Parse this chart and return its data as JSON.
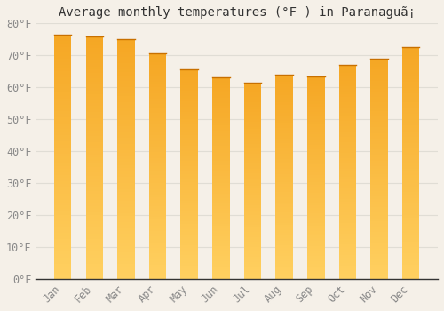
{
  "title": "Average monthly temperatures (°F ) in Paranaguã¡",
  "months": [
    "Jan",
    "Feb",
    "Mar",
    "Apr",
    "May",
    "Jun",
    "Jul",
    "Aug",
    "Sep",
    "Oct",
    "Nov",
    "Dec"
  ],
  "values": [
    76.5,
    76.0,
    75.0,
    70.5,
    65.5,
    63.0,
    61.5,
    64.0,
    63.5,
    67.0,
    69.0,
    72.5
  ],
  "bar_color_top": "#F5A623",
  "bar_color_bottom": "#FFD060",
  "bar_top_line": "#C87000",
  "ylim": [
    0,
    80
  ],
  "ytick_step": 10,
  "background_color": "#f5f0e8",
  "grid_color": "#e0ddd5",
  "title_fontsize": 10,
  "tick_fontsize": 8.5,
  "bar_width": 0.55
}
